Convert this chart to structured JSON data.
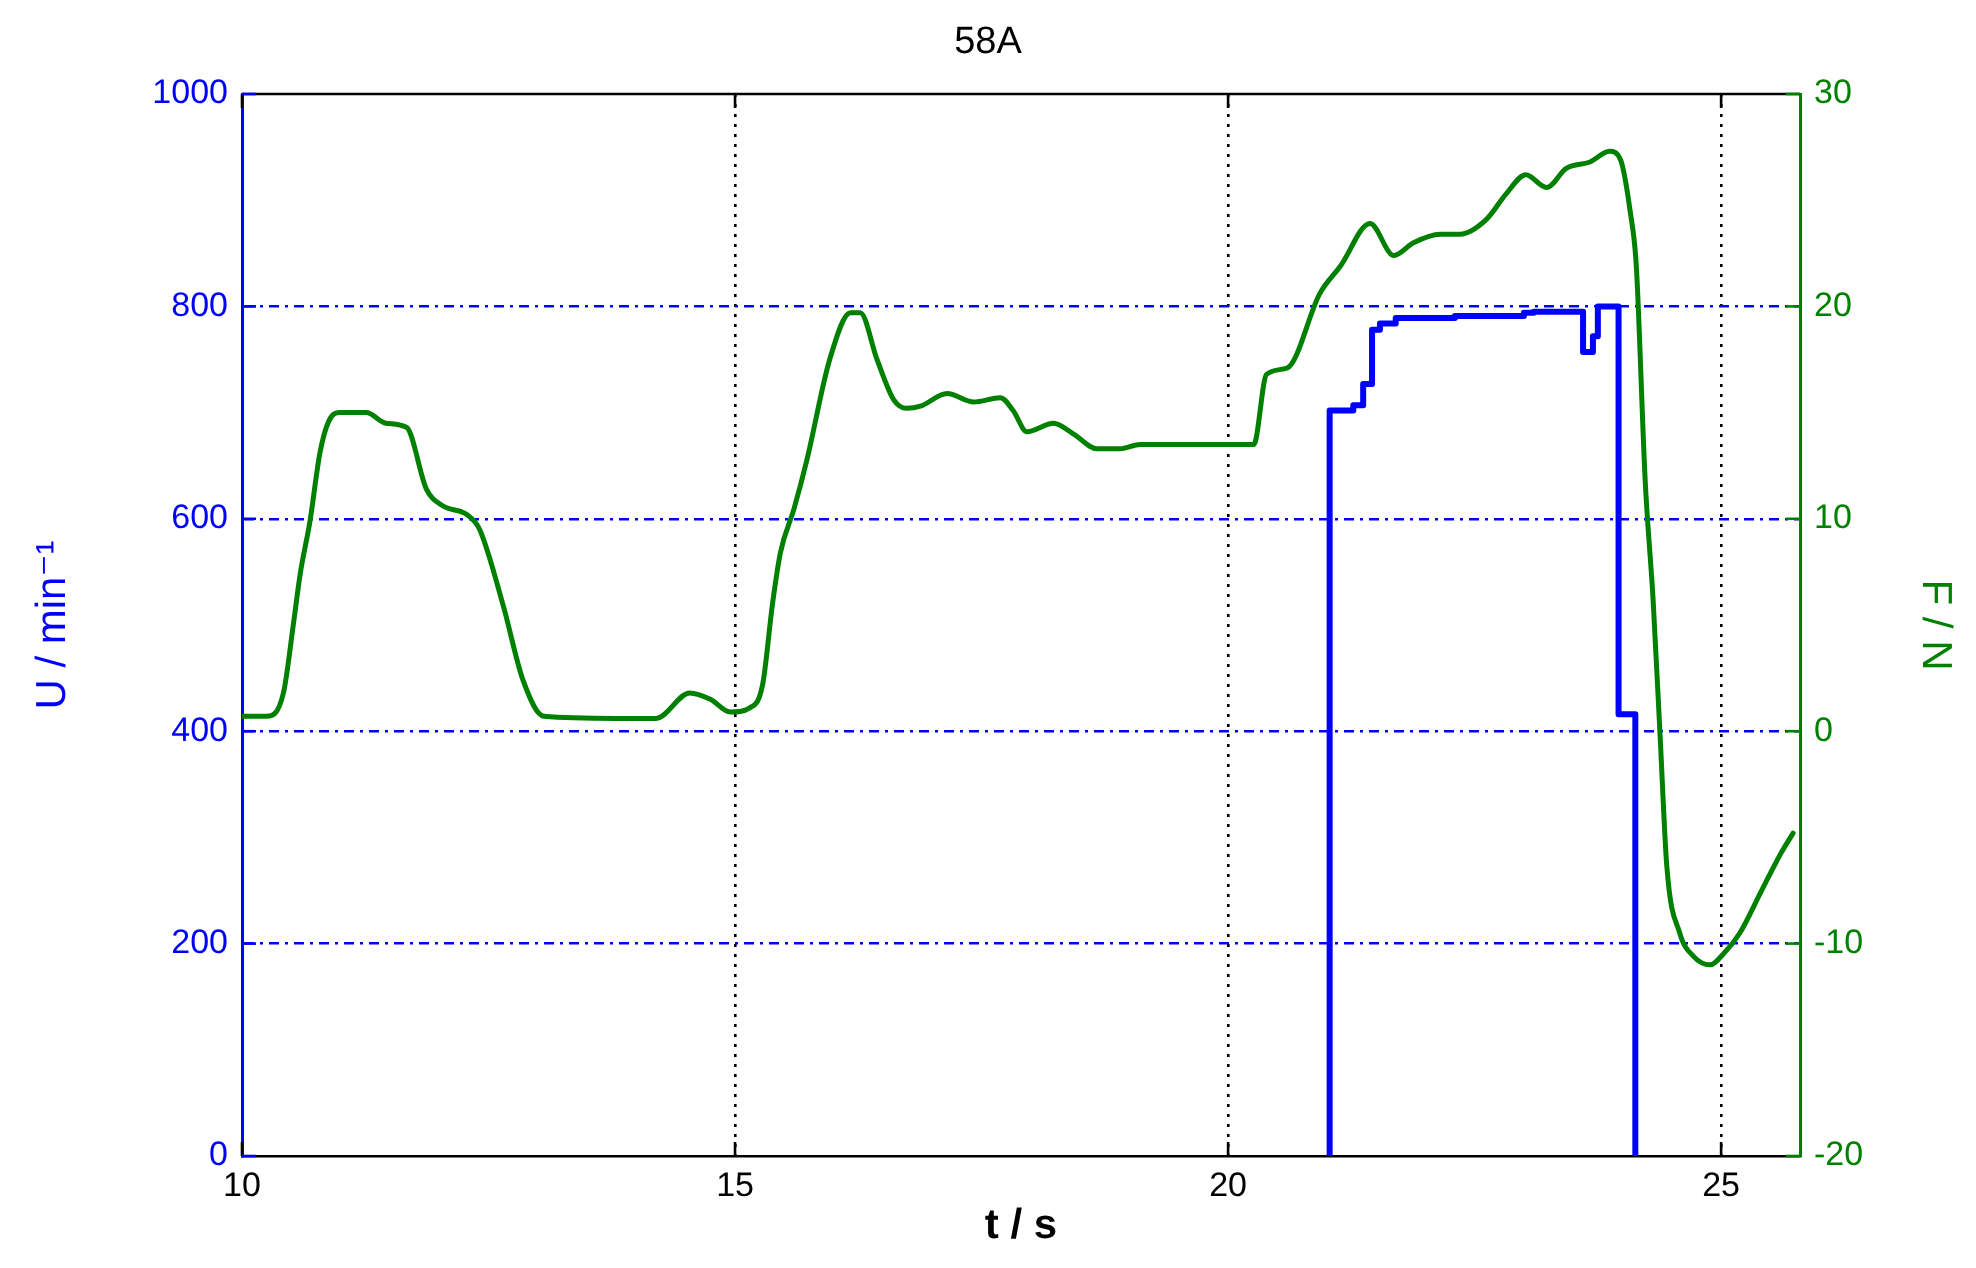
{
  "chart_data": {
    "type": "line",
    "title": "58A",
    "xlabel": "t / s",
    "ylabel": "U / min⁻¹",
    "y2label": "F / N",
    "xlim": [
      10,
      25.8
    ],
    "xticks": [
      10,
      15,
      20,
      25
    ],
    "ylim": [
      0,
      1000
    ],
    "yticks": [
      0,
      200,
      400,
      600,
      800,
      1000
    ],
    "y2lim": [
      -20,
      30
    ],
    "y2ticks": [
      -20,
      -10,
      0,
      10,
      20,
      30
    ],
    "grid": true,
    "series": [
      {
        "type": "step",
        "color": "#0000ff",
        "x": [
          21.03,
          21.03,
          21.27,
          21.37,
          21.46,
          21.54,
          21.7,
          22.3,
          23.0,
          23.1,
          23.6,
          23.7,
          23.75,
          23.96,
          24.13
        ],
        "values": [
          0,
          702,
          707,
          727,
          778,
          784,
          789,
          791,
          794,
          795,
          757,
          772,
          800,
          416,
          0
        ]
      },
      {
        "type": "line",
        "axis": "y2",
        "color": "#008000",
        "x": [
          10.0,
          10.25,
          10.42,
          10.52,
          10.59,
          10.69,
          10.79,
          10.88,
          10.99,
          11.26,
          11.46,
          11.67,
          11.87,
          12.04,
          12.28,
          12.41,
          12.65,
          12.85,
          13.06,
          13.8,
          14.2,
          14.54,
          14.75,
          14.95,
          15.15,
          15.28,
          15.38,
          15.46,
          15.6,
          15.73,
          15.96,
          16.17,
          16.27,
          16.44,
          16.61,
          16.74,
          16.88,
          17.15,
          17.42,
          17.69,
          17.82,
          17.96,
          18.23,
          18.43,
          18.67,
          18.9,
          19.11,
          20.26,
          20.39,
          20.6,
          20.93,
          21.14,
          21.44,
          21.68,
          21.88,
          22.15,
          22.35,
          22.62,
          22.82,
          23.02,
          23.23,
          23.43,
          23.67,
          23.87,
          23.98,
          24.08,
          24.14,
          24.23,
          24.31,
          24.38,
          24.45,
          24.58,
          24.72,
          24.89,
          25.02,
          25.19,
          25.4,
          25.6,
          25.73
        ],
        "values": [
          0.7,
          0.7,
          1.8,
          5.0,
          7.4,
          9.9,
          13.1,
          14.6,
          15.0,
          15.0,
          14.5,
          14.3,
          11.4,
          10.6,
          10.2,
          9.5,
          5.9,
          2.4,
          0.7,
          0.6,
          0.6,
          1.8,
          1.5,
          0.9,
          1.1,
          2.2,
          6.0,
          8.4,
          10.5,
          12.8,
          17.5,
          19.7,
          19.7,
          17.5,
          15.6,
          15.2,
          15.3,
          15.9,
          15.5,
          15.7,
          15.1,
          14.1,
          14.5,
          14.0,
          13.3,
          13.3,
          13.5,
          13.5,
          16.8,
          17.1,
          20.6,
          21.9,
          23.9,
          22.4,
          23.0,
          23.4,
          23.4,
          24.1,
          25.3,
          26.2,
          25.6,
          26.5,
          26.8,
          27.3,
          26.9,
          24.4,
          21.9,
          11.8,
          6.2,
          -0.1,
          -6.4,
          -9.5,
          -10.6,
          -11.0,
          -10.5,
          -9.5,
          -7.6,
          -5.8,
          -4.8
        ]
      }
    ]
  }
}
